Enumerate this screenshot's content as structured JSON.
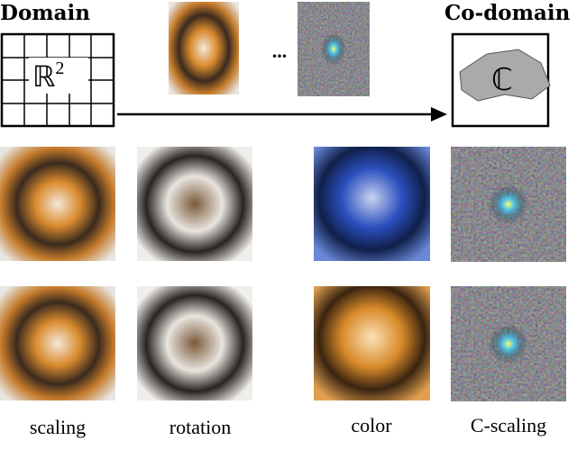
{
  "header": {
    "domain_label": "Domain",
    "codomain_label": "Co-domain",
    "domain_symbol": "ℝ",
    "domain_exponent": "2",
    "codomain_symbol": "ℂ",
    "ellipsis": "..."
  },
  "captions": [
    "scaling",
    "rotation",
    "color",
    "C-scaling"
  ]
}
